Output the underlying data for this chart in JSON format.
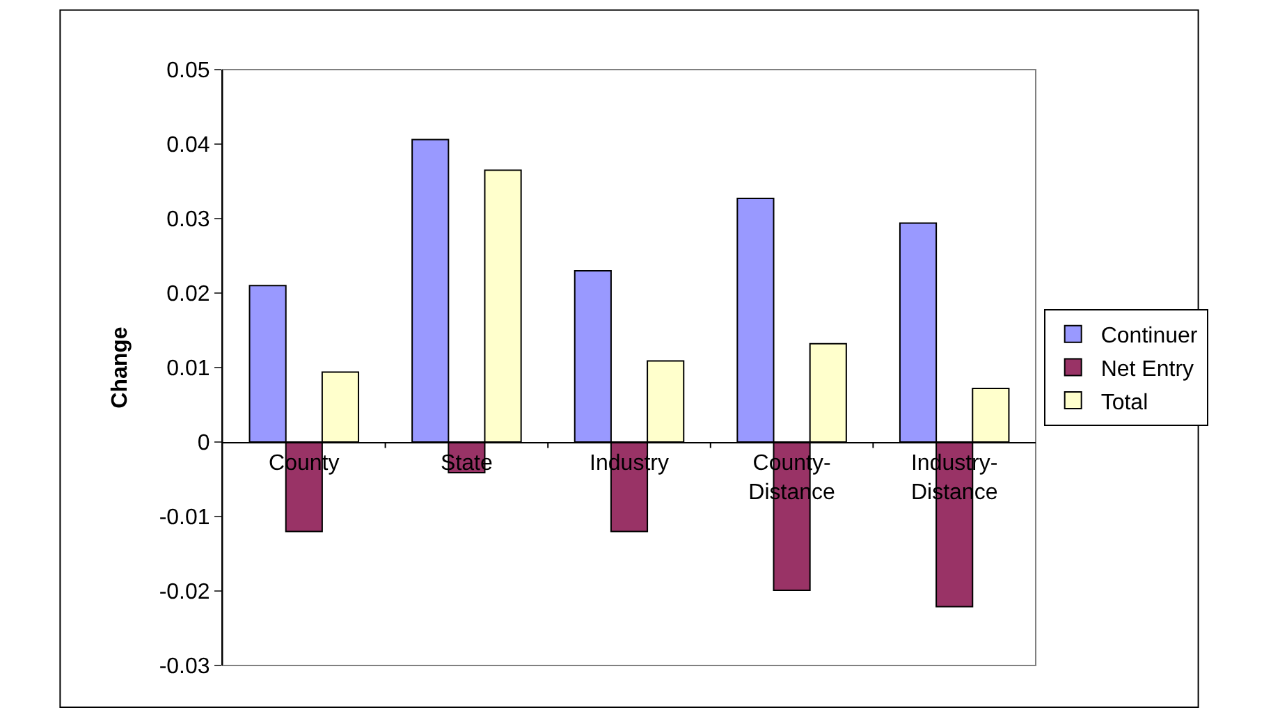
{
  "chart_data": {
    "type": "bar",
    "ylabel": "Change",
    "categories": [
      "County",
      "State",
      "Industry",
      "County-Distance",
      "Industry-Distance"
    ],
    "series": [
      {
        "name": "Continuer",
        "color": "#9999ff",
        "values": [
          0.021,
          0.0406,
          0.023,
          0.0327,
          0.0294
        ]
      },
      {
        "name": "Net Entry",
        "color": "#993366",
        "values": [
          -0.012,
          -0.0041,
          -0.012,
          -0.0199,
          -0.0221
        ]
      },
      {
        "name": "Total",
        "color": "#ffffcc",
        "values": [
          0.0094,
          0.0365,
          0.0109,
          0.0132,
          0.0072
        ]
      }
    ],
    "ylim": [
      -0.03,
      0.05
    ],
    "yticks": [
      -0.03,
      -0.02,
      -0.01,
      0,
      0.01,
      0.02,
      0.03,
      0.04,
      0.05
    ],
    "grid": false,
    "legend": "right"
  }
}
